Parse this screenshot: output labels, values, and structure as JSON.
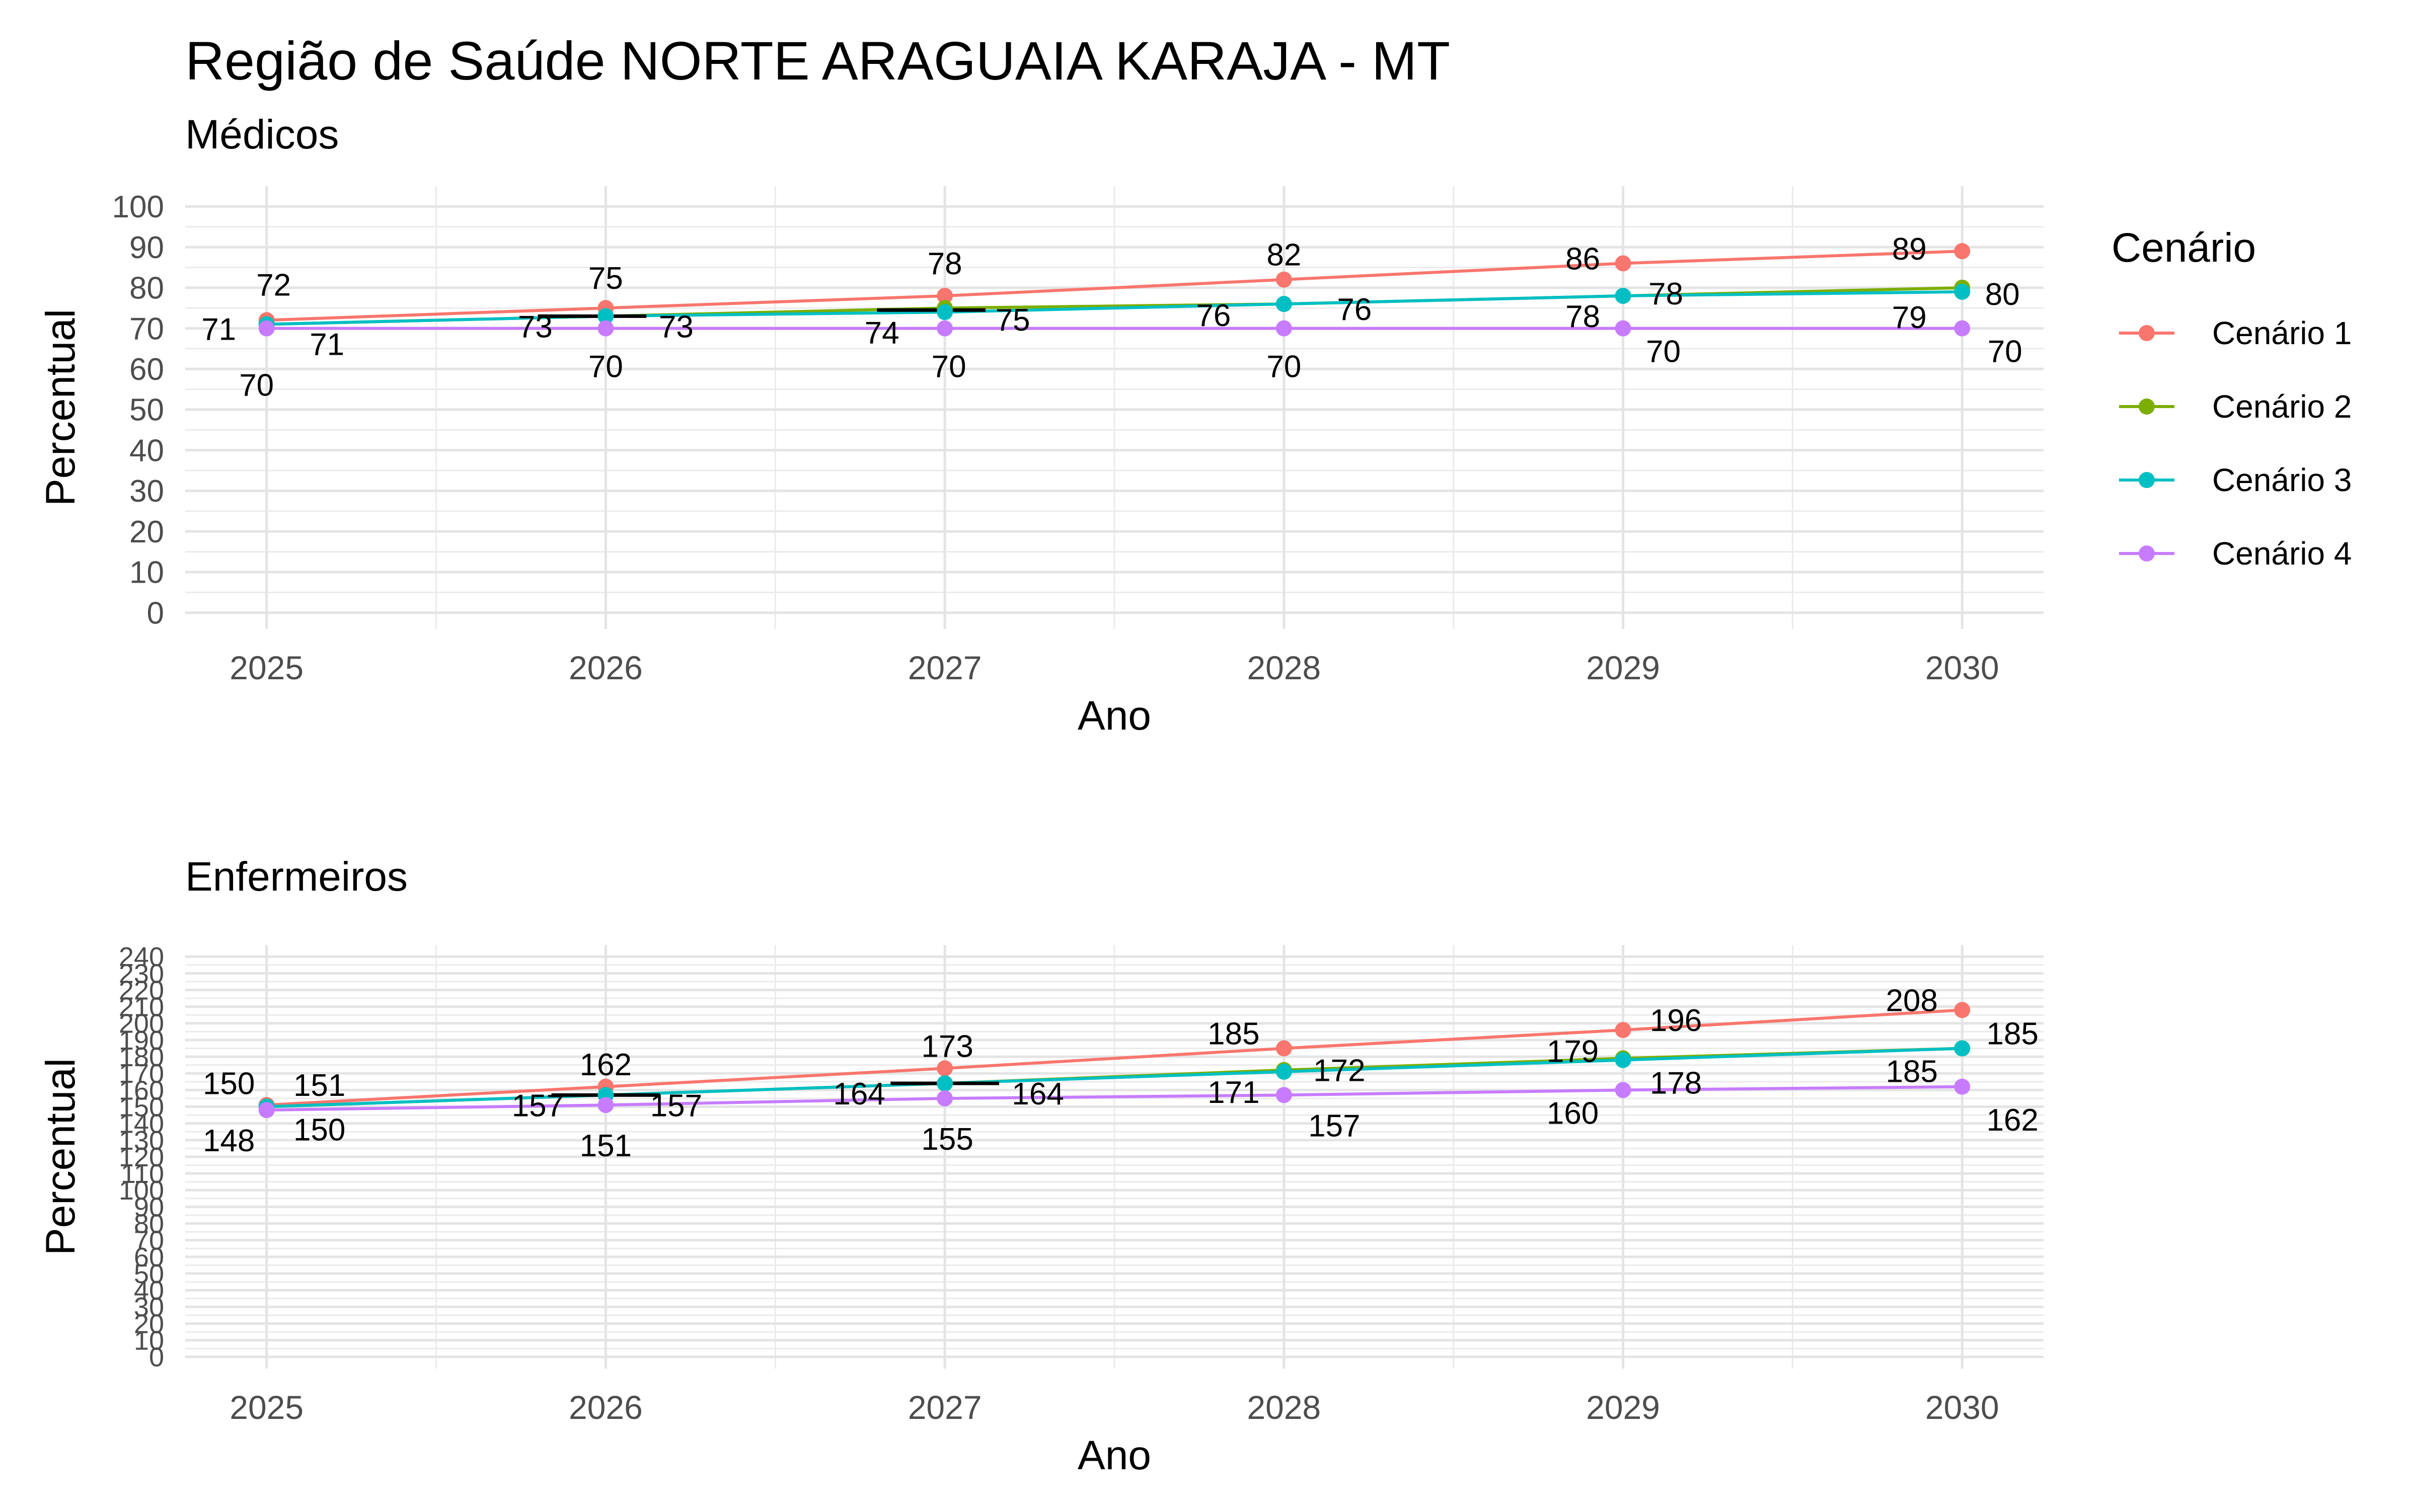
{
  "title": "Região de Saúde NORTE ARAGUAIA KARAJA - MT",
  "colors": {
    "Cenário 1": "#F8766D",
    "Cenário 2": "#7CAE00",
    "Cenário 3": "#00BFC4",
    "Cenário 4": "#C77CFF"
  },
  "legend": {
    "title": "Cenário",
    "position": "right",
    "items": [
      "Cenário 1",
      "Cenário 2",
      "Cenário 3",
      "Cenário 4"
    ]
  },
  "chart_data": [
    {
      "type": "line",
      "subtitle": "Médicos",
      "xlabel": "Ano",
      "ylabel": "Percentual",
      "x": [
        2025,
        2026,
        2027,
        2028,
        2029,
        2030
      ],
      "ylim": [
        -4,
        105
      ],
      "yticks": [
        0,
        10,
        20,
        30,
        40,
        50,
        60,
        70,
        80,
        90,
        100
      ],
      "series": [
        {
          "name": "Cenário 1",
          "values": [
            72,
            75,
            78,
            82,
            86,
            89
          ]
        },
        {
          "name": "Cenário 2",
          "values": [
            71,
            73,
            75,
            76,
            78,
            80
          ]
        },
        {
          "name": "Cenário 3",
          "values": [
            71,
            73,
            74,
            76,
            78,
            79
          ]
        },
        {
          "name": "Cenário 4",
          "values": [
            70,
            70,
            70,
            70,
            70,
            70
          ]
        }
      ],
      "segments": [
        {
          "x": [
            2025.8,
            2026.12
          ],
          "y": 73
        },
        {
          "x": [
            2026.8,
            2027.12
          ],
          "y": 74.5
        }
      ],
      "labels": [
        {
          "x": 2025,
          "y": 72,
          "text": "72",
          "dx": 14,
          "dy": -71
        },
        {
          "x": 2025,
          "y": 71,
          "text": "71",
          "dx": -95,
          "dy": 9
        },
        {
          "x": 2025,
          "y": 71,
          "text": "71",
          "dx": 120,
          "dy": 39
        },
        {
          "x": 2025,
          "y": 70,
          "text": "70",
          "dx": -20,
          "dy": 112
        },
        {
          "x": 2026,
          "y": 75,
          "text": "75",
          "dx": 0,
          "dy": -60
        },
        {
          "x": 2026,
          "y": 73,
          "text": "73",
          "dx": -140,
          "dy": 20
        },
        {
          "x": 2026,
          "y": 73,
          "text": "73",
          "dx": 140,
          "dy": 20
        },
        {
          "x": 2026,
          "y": 70,
          "text": "70",
          "dx": 0,
          "dy": 75
        },
        {
          "x": 2027,
          "y": 78,
          "text": "78",
          "dx": 0,
          "dy": -65
        },
        {
          "x": 2027,
          "y": 75,
          "text": "75",
          "dx": 135,
          "dy": 23
        },
        {
          "x": 2027,
          "y": 74,
          "text": "74",
          "dx": -125,
          "dy": 40
        },
        {
          "x": 2027,
          "y": 70,
          "text": "70",
          "dx": 8,
          "dy": 75
        },
        {
          "x": 2028,
          "y": 82,
          "text": "82",
          "dx": 0,
          "dy": -50
        },
        {
          "x": 2028,
          "y": 76,
          "text": "76",
          "dx": -140,
          "dy": 22
        },
        {
          "x": 2028,
          "y": 76,
          "text": "76",
          "dx": 140,
          "dy": 10
        },
        {
          "x": 2028,
          "y": 70,
          "text": "70",
          "dx": 0,
          "dy": 75
        },
        {
          "x": 2029,
          "y": 86,
          "text": "86",
          "dx": -80,
          "dy": -10
        },
        {
          "x": 2029,
          "y": 78,
          "text": "78",
          "dx": 85,
          "dy": -5
        },
        {
          "x": 2029,
          "y": 78,
          "text": "78",
          "dx": -80,
          "dy": 40
        },
        {
          "x": 2029,
          "y": 70,
          "text": "70",
          "dx": 80,
          "dy": 45
        },
        {
          "x": 2030,
          "y": 89,
          "text": "89",
          "dx": -105,
          "dy": -5
        },
        {
          "x": 2030,
          "y": 80,
          "text": "80",
          "dx": 80,
          "dy": 12
        },
        {
          "x": 2030,
          "y": 79,
          "text": "79",
          "dx": -105,
          "dy": 50
        },
        {
          "x": 2030,
          "y": 70,
          "text": "70",
          "dx": 85,
          "dy": 45
        }
      ]
    },
    {
      "type": "line",
      "subtitle": "Enfermeiros",
      "xlabel": "Ano",
      "ylabel": "Percentual",
      "x": [
        2025,
        2026,
        2027,
        2028,
        2029,
        2030
      ],
      "ylim": [
        -7,
        247
      ],
      "yticks": [
        0,
        10,
        20,
        30,
        40,
        50,
        60,
        70,
        80,
        90,
        100,
        110,
        120,
        130,
        140,
        150,
        160,
        170,
        180,
        190,
        200,
        210,
        220,
        230,
        240
      ],
      "yticklabels": [
        "0",
        "10",
        "20",
        "30",
        "40",
        "50",
        "60",
        "70",
        "80",
        "90",
        "100",
        "110",
        "120",
        "130",
        "140",
        "150",
        "160",
        "170",
        "180",
        "190",
        "200",
        "210",
        "220",
        "230",
        "240"
      ],
      "series": [
        {
          "name": "Cenário 1",
          "values": [
            151,
            162,
            173,
            185,
            196,
            208
          ]
        },
        {
          "name": "Cenário 2",
          "values": [
            150,
            157,
            164,
            172,
            179,
            185
          ]
        },
        {
          "name": "Cenário 3",
          "values": [
            150,
            157,
            164,
            171,
            178,
            185
          ]
        },
        {
          "name": "Cenário 4",
          "values": [
            148,
            151,
            155,
            157,
            160,
            162
          ]
        }
      ],
      "segments": [
        {
          "x": [
            2025.84,
            2026.16
          ],
          "y": 157
        },
        {
          "x": [
            2026.84,
            2027.16
          ],
          "y": 164
        }
      ],
      "labels": [
        {
          "x": 2025,
          "y": 150,
          "text": "150",
          "dx": -75,
          "dy": -47
        },
        {
          "x": 2025,
          "y": 151,
          "text": "151",
          "dx": 105,
          "dy": -40
        },
        {
          "x": 2025,
          "y": 148,
          "text": "148",
          "dx": -75,
          "dy": 60
        },
        {
          "x": 2025,
          "y": 150,
          "text": "150",
          "dx": 105,
          "dy": 45
        },
        {
          "x": 2026,
          "y": 162,
          "text": "162",
          "dx": 0,
          "dy": -45
        },
        {
          "x": 2026,
          "y": 157,
          "text": "157",
          "dx": -135,
          "dy": 20
        },
        {
          "x": 2026,
          "y": 157,
          "text": "157",
          "dx": 140,
          "dy": 20
        },
        {
          "x": 2026,
          "y": 151,
          "text": "151",
          "dx": 0,
          "dy": 80
        },
        {
          "x": 2027,
          "y": 173,
          "text": "173",
          "dx": 5,
          "dy": -45
        },
        {
          "x": 2027,
          "y": 164,
          "text": "164",
          "dx": -170,
          "dy": 20
        },
        {
          "x": 2027,
          "y": 164,
          "text": "164",
          "dx": 185,
          "dy": 20
        },
        {
          "x": 2027,
          "y": 155,
          "text": "155",
          "dx": 5,
          "dy": 80
        },
        {
          "x": 2028,
          "y": 185,
          "text": "185",
          "dx": -100,
          "dy": -30
        },
        {
          "x": 2028,
          "y": 172,
          "text": "172",
          "dx": 110,
          "dy": 0
        },
        {
          "x": 2028,
          "y": 171,
          "text": "171",
          "dx": -100,
          "dy": 40
        },
        {
          "x": 2028,
          "y": 157,
          "text": "157",
          "dx": 100,
          "dy": 60
        },
        {
          "x": 2029,
          "y": 196,
          "text": "196",
          "dx": 105,
          "dy": -20
        },
        {
          "x": 2029,
          "y": 179,
          "text": "179",
          "dx": -100,
          "dy": -15
        },
        {
          "x": 2029,
          "y": 178,
          "text": "178",
          "dx": 105,
          "dy": 45
        },
        {
          "x": 2029,
          "y": 160,
          "text": "160",
          "dx": -100,
          "dy": 45
        },
        {
          "x": 2030,
          "y": 208,
          "text": "208",
          "dx": -100,
          "dy": -20
        },
        {
          "x": 2030,
          "y": 185,
          "text": "185",
          "dx": 100,
          "dy": -30
        },
        {
          "x": 2030,
          "y": 185,
          "text": "185",
          "dx": -100,
          "dy": 45
        },
        {
          "x": 2030,
          "y": 162,
          "text": "162",
          "dx": 100,
          "dy": 65
        }
      ]
    }
  ]
}
